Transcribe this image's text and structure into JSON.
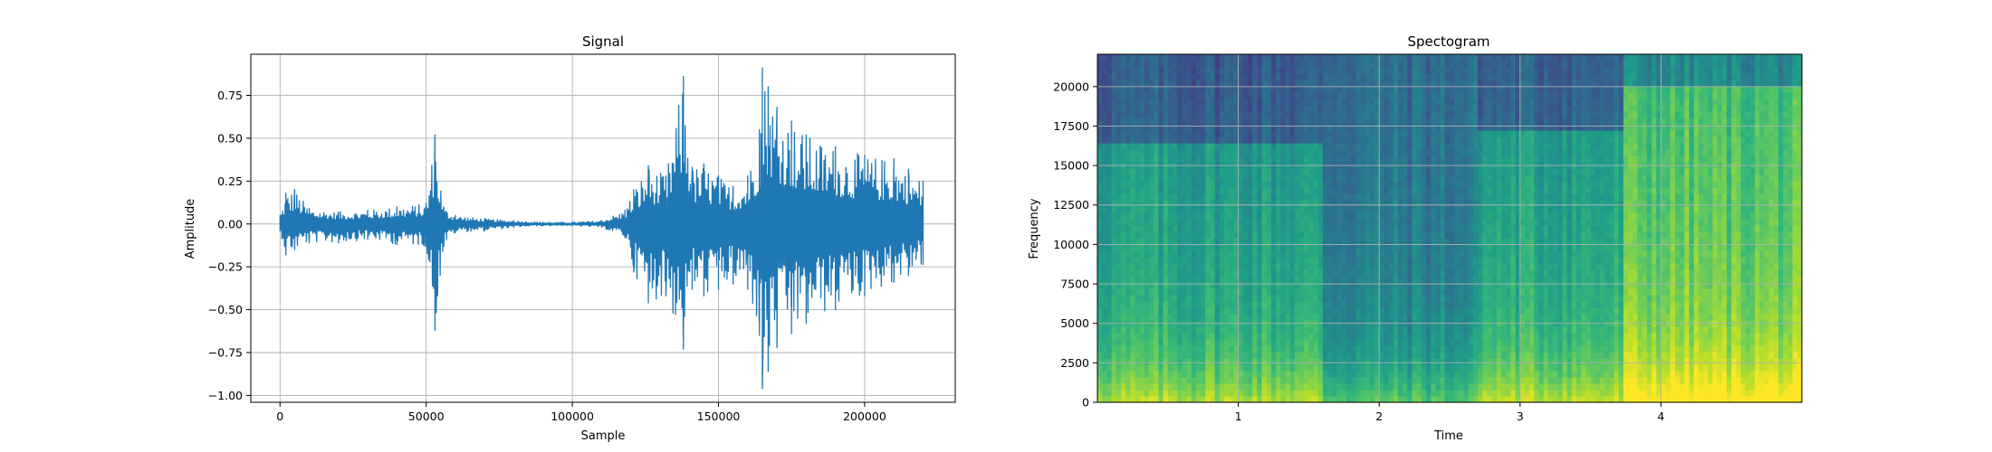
{
  "chart_data": [
    {
      "type": "line",
      "title": "Signal",
      "xlabel": "Sample",
      "ylabel": "Amplitude",
      "xlim": [
        -10000,
        231000
      ],
      "ylim": [
        -1.04,
        0.99
      ],
      "xticks": [
        0,
        50000,
        100000,
        150000,
        200000
      ],
      "xtick_labels": [
        "0",
        "50000",
        "100000",
        "150000",
        "200000"
      ],
      "yticks": [
        -1.0,
        -0.75,
        -0.5,
        -0.25,
        0.0,
        0.25,
        0.5,
        0.75
      ],
      "ytick_labels": [
        "−1.00",
        "−0.75",
        "−0.50",
        "−0.25",
        "0.00",
        "0.25",
        "0.50",
        "0.75"
      ],
      "grid": true,
      "color": "#1f77b4",
      "series": [
        {
          "envelope": {
            "x": [
              0,
              2000,
              5000,
              10000,
              20000,
              30000,
              40000,
              50000,
              53000,
              56000,
              60000,
              70000,
              80000,
              90000,
              100000,
              110000,
              118000,
              121000,
              126000,
              132000,
              138000,
              141000,
              145000,
              150000,
              155000,
              160000,
              164000,
              165000,
              167000,
              170000,
              175000,
              180000,
              190000,
              200000,
              210000,
              215000,
              220000
            ],
            "max": [
              0.05,
              0.18,
              0.2,
              0.09,
              0.07,
              0.08,
              0.1,
              0.12,
              0.52,
              0.1,
              0.05,
              0.03,
              0.02,
              0.01,
              0.01,
              0.02,
              0.08,
              0.2,
              0.34,
              0.28,
              0.86,
              0.33,
              0.35,
              0.28,
              0.22,
              0.28,
              0.55,
              0.91,
              0.8,
              0.68,
              0.6,
              0.52,
              0.45,
              0.4,
              0.38,
              0.32,
              0.25
            ],
            "min": [
              -0.04,
              -0.18,
              -0.15,
              -0.11,
              -0.11,
              -0.09,
              -0.12,
              -0.13,
              -0.62,
              -0.13,
              -0.05,
              -0.04,
              -0.02,
              -0.01,
              -0.01,
              -0.02,
              -0.08,
              -0.28,
              -0.46,
              -0.42,
              -0.73,
              -0.38,
              -0.42,
              -0.38,
              -0.35,
              -0.38,
              -0.65,
              -0.96,
              -0.86,
              -0.72,
              -0.64,
              -0.58,
              -0.5,
              -0.42,
              -0.34,
              -0.3,
              -0.24
            ]
          }
        }
      ]
    },
    {
      "type": "heatmap",
      "title": "Spectogram",
      "xlabel": "Time",
      "ylabel": "Frequency",
      "xlim": [
        0.0,
        5.0
      ],
      "ylim": [
        0,
        22050
      ],
      "xticks": [
        1,
        2,
        3,
        4
      ],
      "xtick_labels": [
        "1",
        "2",
        "3",
        "4"
      ],
      "yticks": [
        0,
        2500,
        5000,
        7500,
        10000,
        12500,
        15000,
        17500,
        20000
      ],
      "ytick_labels": [
        "0",
        "2500",
        "5000",
        "7500",
        "10000",
        "12500",
        "15000",
        "17500",
        "20000"
      ],
      "grid": true,
      "colormap": "viridis",
      "segments": [
        {
          "t_start": 0.0,
          "t_end": 1.6,
          "level": 0.6,
          "hf_cutoff": 16200
        },
        {
          "t_start": 1.6,
          "t_end": 2.7,
          "level": 0.45,
          "hf_cutoff": 22050
        },
        {
          "t_start": 2.7,
          "t_end": 3.7,
          "level": 0.62,
          "hf_cutoff": 17000
        },
        {
          "t_start": 3.7,
          "t_end": 5.0,
          "level": 0.78,
          "hf_cutoff": 19800
        }
      ]
    }
  ]
}
